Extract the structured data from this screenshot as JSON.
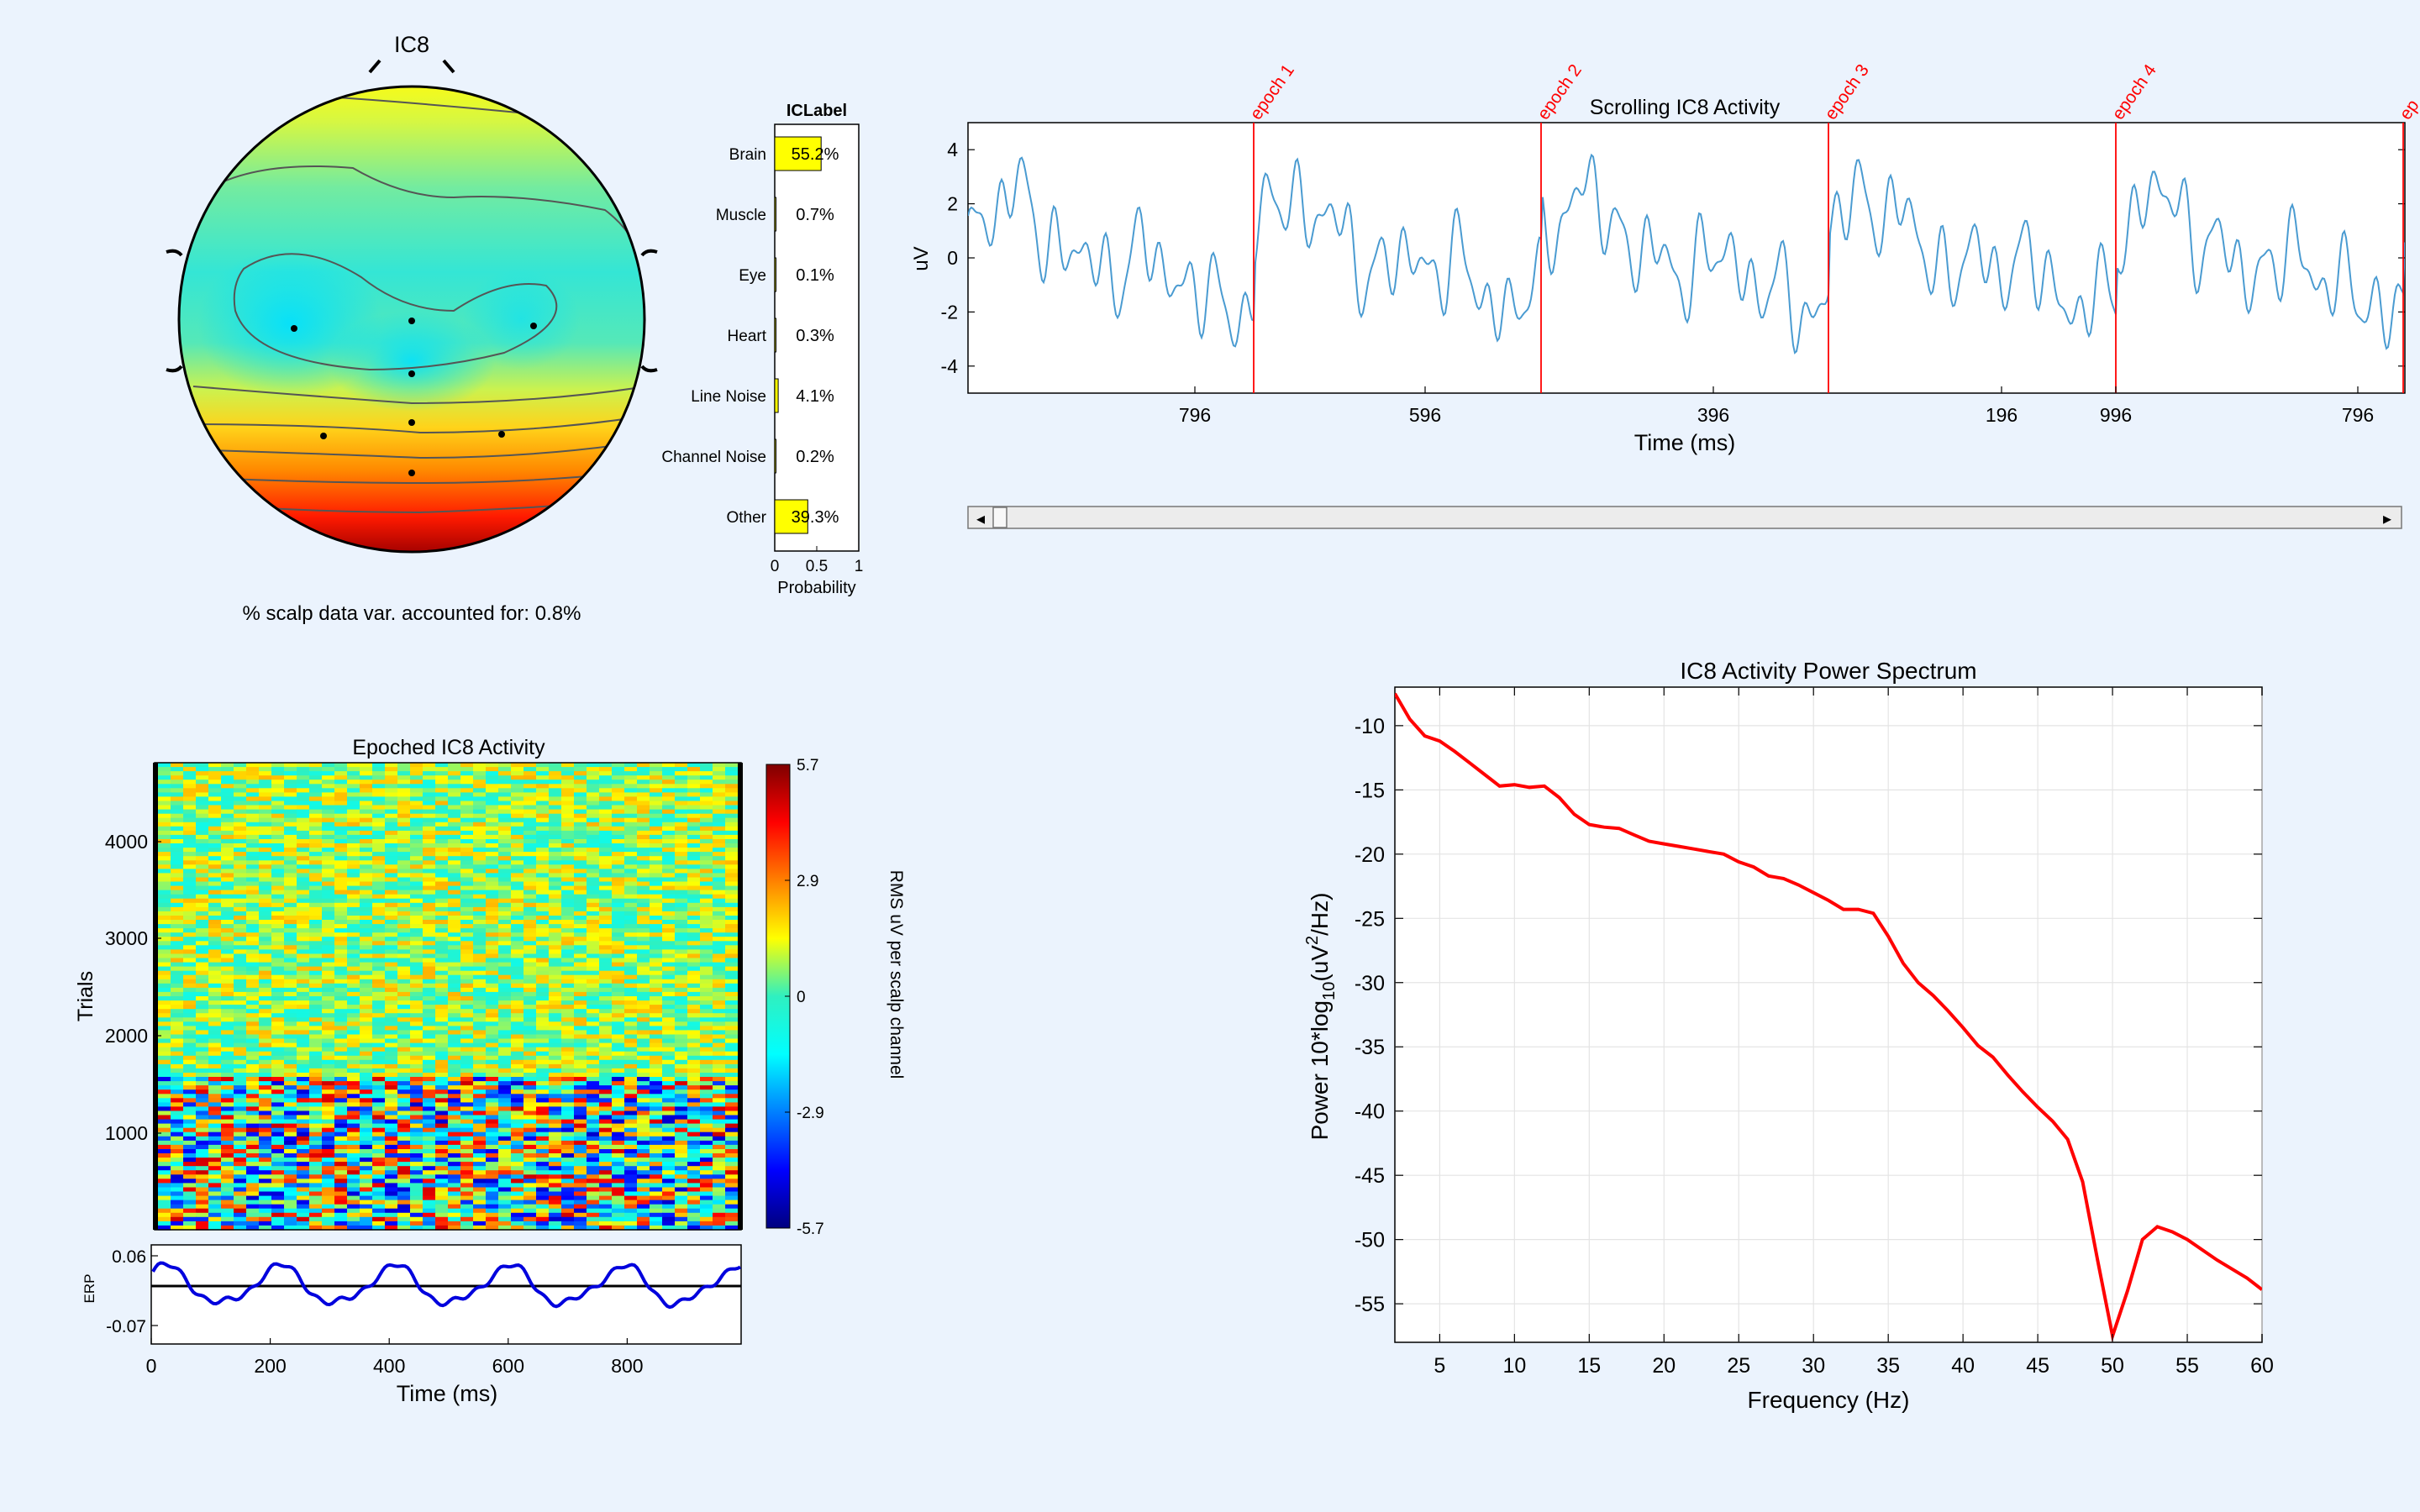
{
  "chart_data": [
    {
      "type": "topoplot",
      "title": "IC8",
      "caption": "% scalp data var. accounted for: 0.8%",
      "colors": {
        "low": "#00d8ff",
        "mid": "#ffff00",
        "high": "#a00000"
      }
    },
    {
      "type": "bar",
      "title": "ICLabel",
      "categories": [
        "Brain",
        "Muscle",
        "Eye",
        "Heart",
        "Line Noise",
        "Channel Noise",
        "Other"
      ],
      "values": [
        0.552,
        0.007,
        0.001,
        0.003,
        0.041,
        0.002,
        0.393
      ],
      "value_labels": [
        "55.2%",
        "0.7%",
        "0.1%",
        "0.3%",
        "4.1%",
        "0.2%",
        "39.3%"
      ],
      "xlabel": "Probability",
      "xlim": [
        0,
        1
      ],
      "xticks": [
        "0",
        "0.5",
        "1"
      ],
      "bar_color": "#ffff00"
    },
    {
      "type": "line",
      "title": "Scrolling IC8 Activity",
      "xlabel": "Time (ms)",
      "ylabel": "uV",
      "ylim": [
        -5,
        5
      ],
      "yticks": [
        "4",
        "2",
        "0",
        "-2",
        "-4"
      ],
      "xticks": [
        "796",
        "596",
        "396",
        "196",
        "996",
        "796"
      ],
      "epoch_labels": [
        "epoch 1",
        "epoch 2",
        "epoch 3",
        "epoch 4",
        "ep"
      ],
      "line_color": "#4a9bd1",
      "marker_color": "#ff0000",
      "scrollbar": {
        "left_arrow": "◂",
        "right_arrow": "▸"
      }
    },
    {
      "type": "heatmap",
      "title": "Epoched IC8 Activity",
      "ylabel": "Trials",
      "yticks": [
        "4000",
        "3000",
        "2000",
        "1000"
      ],
      "colorbar_ticks": [
        "5.7",
        "2.9",
        "0",
        "-2.9",
        "-5.7"
      ],
      "colorbar_label": "RMS uV per scalp channel",
      "erp": {
        "ylabel": "ERP",
        "yticks": [
          "0.06",
          "-0.07"
        ],
        "xlabel": "Time (ms)",
        "xticks": [
          "0",
          "200",
          "400",
          "600",
          "800"
        ],
        "line_color": "#0000dd"
      }
    },
    {
      "type": "line",
      "title": "IC8 Activity Power Spectrum",
      "xlabel": "Frequency (Hz)",
      "ylabel_main": "Power 10*log",
      "ylabel_sub": "10",
      "ylabel_paren": "(uV",
      "ylabel_sup": "2",
      "ylabel_end": "/Hz)",
      "xlim": [
        2,
        60
      ],
      "ylim": [
        -58,
        -7
      ],
      "xticks": [
        5,
        10,
        15,
        20,
        25,
        30,
        35,
        40,
        45,
        50,
        55,
        60
      ],
      "yticks": [
        -10,
        -15,
        -20,
        -25,
        -30,
        -35,
        -40,
        -45,
        -50,
        -55
      ],
      "line_color": "#ff0000",
      "x": [
        2,
        3,
        4,
        5,
        6,
        7,
        8,
        9,
        10,
        11,
        12,
        13,
        14,
        15,
        16,
        17,
        18,
        19,
        20,
        21,
        22,
        23,
        24,
        25,
        26,
        27,
        28,
        29,
        30,
        31,
        32,
        33,
        34,
        35,
        36,
        37,
        38,
        39,
        40,
        41,
        42,
        43,
        44,
        45,
        46,
        47,
        48,
        49,
        50,
        51,
        52,
        53,
        54,
        55,
        56,
        57,
        58,
        59,
        60
      ],
      "y": [
        -7.5,
        -9.5,
        -10.8,
        -11.2,
        -12.0,
        -12.9,
        -13.8,
        -14.7,
        -14.6,
        -14.8,
        -14.7,
        -15.6,
        -16.9,
        -17.7,
        -17.9,
        -18.0,
        -18.5,
        -19.0,
        -19.2,
        -19.4,
        -19.6,
        -19.8,
        -20.0,
        -20.6,
        -21.0,
        -21.7,
        -21.9,
        -22.4,
        -23.0,
        -23.6,
        -24.3,
        -24.3,
        -24.6,
        -26.4,
        -28.5,
        -30.0,
        -31.0,
        -32.2,
        -33.5,
        -34.9,
        -35.8,
        -37.2,
        -38.5,
        -39.7,
        -40.8,
        -42.2,
        -45.5,
        -51.6,
        -57.5,
        -54.0,
        -50.0,
        -49.0,
        -49.4,
        -50.0,
        -50.8,
        -51.6,
        -52.3,
        -53.0,
        -53.9
      ]
    }
  ]
}
